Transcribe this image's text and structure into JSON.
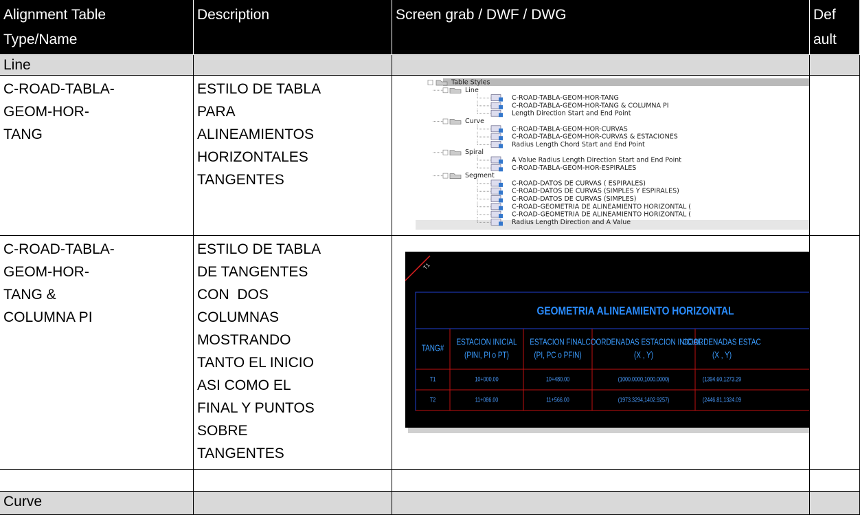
{
  "table": {
    "header": [
      [
        "Alignment Table",
        "Type/Name"
      ],
      [
        "Description"
      ],
      [
        "Screen grab / DWF / DWG"
      ],
      [
        "Def",
        "ault"
      ]
    ],
    "rows": [
      {
        "name": [
          "Line"
        ]
      },
      {
        "name": [
          "C-ROAD-TABLA-",
          "GEOM-HOR-",
          "TANG"
        ],
        "description": [
          "ESTILO DE TABLA",
          "PARA",
          "ALINEAMIENTOS",
          "HORIZONTALES",
          "TANGENTES"
        ],
        "tree": {
          "root": "Table Styles",
          "groups": [
            {
              "label": "Line",
              "items": [
                "C-ROAD-TABLA-GEOM-HOR-TANG",
                "C-ROAD-TABLA-GEOM-HOR-TANG & COLUMNA PI",
                "Length Direction Start and End Point"
              ]
            },
            {
              "label": "Curve",
              "items": [
                "C-ROAD-TABLA-GEOM-HOR-CURVAS",
                "C-ROAD-TABLA-GEOM-HOR-CURVAS & ESTACIONES",
                "Radius Length Chord Start and End Point"
              ]
            },
            {
              "label": "Spiral",
              "items": [
                "A Value Radius Length Direction Start and End Point",
                "C-ROAD-TABLA-GEOM-HOR-ESPIRALES"
              ]
            },
            {
              "label": "Segment",
              "items": [
                "C-ROAD-DATOS DE CURVAS ( ESPIRALES)",
                "C-ROAD-DATOS DE CURVAS (SIMPLES Y ESPIRALES)",
                "C-ROAD-DATOS DE CURVAS (SIMPLES)",
                "C-ROAD-GEOMETRIA DE ALINEAMIENTO HORIZONTAL (",
                "C-ROAD-GEOMETRIA DE ALINEAMIENTO HORIZONTAL (",
                "Radius Length Direction and A Value"
              ]
            }
          ]
        }
      },
      {
        "name": [
          "C-ROAD-TABLA-",
          "GEOM-HOR-",
          "TANG &",
          "COLUMNA PI"
        ],
        "description": [
          "ESTILO DE TABLA",
          "DE TANGENTES",
          "CON  DOS",
          "COLUMNAS",
          "MOSTRANDO",
          "TANTO EL INICIO",
          "ASI COMO EL",
          "FINAL Y PUNTOS",
          "SOBRE",
          "TANGENTES"
        ],
        "drawing": {
          "marker": "T1",
          "title": "GEOMETRIA ALINEAMIENTO HORIZONTAL",
          "columns": [
            [
              "TANG#"
            ],
            [
              "ESTACION INICIAL",
              "(PINI, PI o PT)"
            ],
            [
              "ESTACION FINAL",
              "(PI, PC o PFIN)"
            ],
            [
              "COORDENADAS ESTACION INICIAL",
              "(X , Y)"
            ],
            [
              "COORDENADAS ESTAC",
              "(X , Y)"
            ]
          ],
          "rows": [
            [
              "T1",
              "10+000.00",
              "10+480.00",
              "(1000.0000,1000.0000)",
              "(1394.60,1273.29"
            ],
            [
              "T2",
              "11+086.00",
              "11+566.00",
              "(1973.3294,1402.9257)",
              "(2446.81,1324.09"
            ]
          ]
        }
      },
      {},
      {
        "name": [
          "Curve"
        ]
      }
    ]
  }
}
